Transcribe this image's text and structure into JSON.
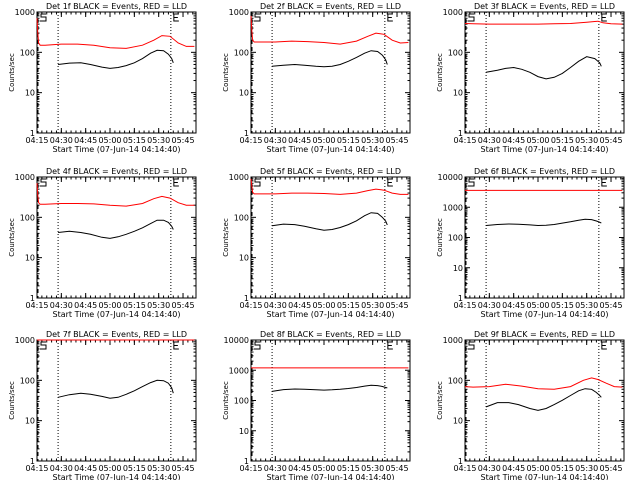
{
  "figure": {
    "xlabel": "Start Time (07-Jun-14 04:14:40)",
    "ylabel": "Counts/sec",
    "x_ticks": [
      "04:15",
      "04:30",
      "04:45",
      "05:00",
      "05:15",
      "05:30",
      "05:45"
    ],
    "x_tick_minutes": [
      15,
      30,
      45,
      60,
      75,
      90,
      105
    ],
    "x_range_minutes": [
      15,
      113
    ],
    "marker_S_minute": 15,
    "marker_E_minute": 97.5,
    "dotted_lines_minutes": [
      28,
      97.5
    ],
    "colors": {
      "events": "#000000",
      "lld": "#ff0000"
    }
  },
  "chart_data": [
    {
      "type": "line",
      "title": "Det 1f BLACK = Events, RED = LLD",
      "xlabel": "Start Time (07-Jun-14 04:14:40)",
      "ylabel": "Counts/sec",
      "yscale": "log",
      "ylim": [
        1,
        1000
      ],
      "y_ticks": [
        "1",
        "10",
        "100",
        "1000"
      ],
      "series": [
        {
          "x": [
            15,
            15.5,
            16,
            17,
            20,
            30,
            40,
            50,
            60,
            70,
            80,
            87,
            92,
            97,
            102,
            107,
            112
          ],
          "values": [
            700,
            300,
            170,
            150,
            150,
            160,
            160,
            150,
            130,
            125,
            150,
            200,
            260,
            250,
            170,
            140,
            140
          ]
        },
        {
          "x": [
            28,
            35,
            42,
            48,
            55,
            60,
            65,
            70,
            75,
            80,
            85,
            89,
            93,
            96,
            98,
            99
          ],
          "values": [
            50,
            54,
            55,
            50,
            43,
            40,
            42,
            47,
            55,
            70,
            95,
            112,
            110,
            90,
            70,
            55
          ]
        }
      ]
    },
    {
      "type": "line",
      "title": "Det 2f BLACK = Events, RED = LLD",
      "xlabel": "Start Time (07-Jun-14 04:14:40)",
      "ylabel": "Counts/sec",
      "yscale": "log",
      "ylim": [
        1,
        1000
      ],
      "y_ticks": [
        "1",
        "10",
        "100",
        "1000"
      ],
      "series": [
        {
          "x": [
            15,
            15.5,
            16,
            17,
            20,
            30,
            40,
            50,
            60,
            70,
            80,
            87,
            92,
            97,
            102,
            107,
            112
          ],
          "values": [
            800,
            350,
            200,
            180,
            180,
            180,
            190,
            185,
            175,
            160,
            190,
            250,
            300,
            280,
            200,
            170,
            175
          ]
        },
        {
          "x": [
            28,
            35,
            42,
            48,
            55,
            60,
            65,
            70,
            75,
            80,
            85,
            89,
            93,
            96,
            98,
            99
          ],
          "values": [
            45,
            48,
            50,
            48,
            45,
            44,
            45,
            50,
            60,
            75,
            95,
            110,
            105,
            85,
            65,
            50
          ]
        }
      ]
    },
    {
      "type": "line",
      "title": "Det 3f BLACK = Events, RED = LLD",
      "xlabel": "Start Time (07-Jun-14 04:14:40)",
      "ylabel": "Counts/sec",
      "yscale": "log",
      "ylim": [
        1,
        1000
      ],
      "y_ticks": [
        "1",
        "10",
        "100",
        "1000"
      ],
      "series": [
        {
          "x": [
            15,
            20,
            30,
            40,
            50,
            60,
            70,
            80,
            90,
            95,
            97,
            100,
            105,
            112
          ],
          "values": [
            520,
            510,
            500,
            500,
            500,
            500,
            510,
            520,
            560,
            580,
            590,
            540,
            510,
            500
          ]
        },
        {
          "x": [
            28,
            35,
            40,
            45,
            50,
            55,
            60,
            65,
            70,
            75,
            80,
            85,
            90,
            95,
            98,
            99
          ],
          "values": [
            32,
            36,
            40,
            42,
            38,
            32,
            25,
            22,
            24,
            30,
            42,
            60,
            78,
            70,
            55,
            45
          ]
        }
      ]
    },
    {
      "type": "line",
      "title": "Det 4f BLACK = Events, RED = LLD",
      "xlabel": "Start Time (07-Jun-14 04:14:40)",
      "ylabel": "Counts/sec",
      "yscale": "log",
      "ylim": [
        1,
        1000
      ],
      "y_ticks": [
        "1",
        "10",
        "100",
        "1000"
      ],
      "series": [
        {
          "x": [
            15,
            15.5,
            16,
            17,
            20,
            30,
            40,
            50,
            60,
            70,
            80,
            87,
            92,
            97,
            102,
            107,
            112
          ],
          "values": [
            700,
            350,
            230,
            210,
            210,
            220,
            220,
            215,
            200,
            190,
            220,
            290,
            330,
            300,
            230,
            200,
            200
          ]
        },
        {
          "x": [
            28,
            35,
            42,
            48,
            55,
            60,
            65,
            70,
            75,
            80,
            85,
            89,
            93,
            96,
            98,
            99
          ],
          "values": [
            42,
            45,
            42,
            38,
            32,
            30,
            33,
            38,
            45,
            55,
            70,
            85,
            85,
            75,
            60,
            50
          ]
        }
      ]
    },
    {
      "type": "line",
      "title": "Det 5f BLACK = Events, RED = LLD",
      "xlabel": "Start Time (07-Jun-14 04:14:40)",
      "ylabel": "Counts/sec",
      "yscale": "log",
      "ylim": [
        1,
        1000
      ],
      "y_ticks": [
        "1",
        "10",
        "100",
        "1000"
      ],
      "series": [
        {
          "x": [
            15,
            15.5,
            16,
            17,
            20,
            30,
            40,
            50,
            60,
            70,
            80,
            87,
            92,
            97,
            102,
            107,
            112
          ],
          "values": [
            900,
            600,
            420,
            380,
            380,
            380,
            400,
            400,
            390,
            370,
            400,
            460,
            500,
            470,
            400,
            370,
            370
          ]
        },
        {
          "x": [
            28,
            35,
            42,
            48,
            55,
            60,
            65,
            70,
            75,
            80,
            85,
            89,
            93,
            96,
            98,
            99
          ],
          "values": [
            62,
            68,
            66,
            60,
            52,
            48,
            50,
            56,
            66,
            82,
            110,
            130,
            125,
            100,
            80,
            65
          ]
        }
      ]
    },
    {
      "type": "line",
      "title": "Det 6f BLACK = Events, RED = LLD",
      "xlabel": "Start Time (07-Jun-14 04:14:40)",
      "ylabel": "Counts/sec",
      "yscale": "log",
      "ylim": [
        1,
        10000
      ],
      "y_ticks": [
        "1",
        "10",
        "100",
        "1000",
        "10000"
      ],
      "series": [
        {
          "x": [
            15,
            30,
            45,
            60,
            75,
            90,
            105,
            112
          ],
          "values": [
            3600,
            3600,
            3600,
            3600,
            3600,
            3600,
            3600,
            3600
          ]
        },
        {
          "x": [
            28,
            35,
            42,
            48,
            55,
            60,
            65,
            70,
            75,
            80,
            85,
            89,
            93,
            96,
            98,
            99
          ],
          "values": [
            250,
            270,
            280,
            275,
            260,
            250,
            255,
            270,
            300,
            330,
            370,
            400,
            390,
            350,
            320,
            300
          ]
        }
      ]
    },
    {
      "type": "line",
      "title": "Det 7f BLACK = Events, RED = LLD",
      "xlabel": "Start Time (07-Jun-14 04:14:40)",
      "ylabel": "Counts/sec",
      "yscale": "log",
      "ylim": [
        1,
        1000
      ],
      "y_ticks": [
        "1",
        "10",
        "100",
        "1000"
      ],
      "series": [
        {
          "x": [
            15,
            20,
            30,
            40,
            50,
            60,
            70,
            80,
            90,
            97,
            100,
            105,
            112
          ],
          "values": [
            1000,
            1000,
            1000,
            1000,
            1000,
            1000,
            1000,
            1000,
            1000,
            1000,
            1000,
            1000,
            1000
          ]
        },
        {
          "x": [
            28,
            35,
            42,
            48,
            55,
            60,
            65,
            70,
            75,
            80,
            85,
            89,
            93,
            96,
            98,
            99
          ],
          "values": [
            38,
            44,
            48,
            45,
            40,
            36,
            38,
            45,
            55,
            70,
            88,
            100,
            98,
            85,
            65,
            48
          ]
        }
      ]
    },
    {
      "type": "line",
      "title": "Det 8f BLACK = Events, RED = LLD",
      "xlabel": "Start Time (07-Jun-14 04:14:40)",
      "ylabel": "Counts/sec",
      "yscale": "log",
      "ylim": [
        1,
        10000
      ],
      "y_ticks": [
        "1",
        "10",
        "100",
        "1000",
        "10000"
      ],
      "series": [
        {
          "x": [
            15,
            30,
            45,
            60,
            75,
            90,
            105,
            112
          ],
          "values": [
            1200,
            1200,
            1200,
            1200,
            1200,
            1200,
            1200,
            1200
          ]
        },
        {
          "x": [
            28,
            35,
            42,
            48,
            55,
            60,
            65,
            70,
            75,
            80,
            85,
            89,
            93,
            96,
            98,
            99
          ],
          "values": [
            200,
            230,
            240,
            235,
            225,
            220,
            225,
            235,
            250,
            270,
            300,
            320,
            310,
            290,
            270,
            260
          ]
        }
      ]
    },
    {
      "type": "line",
      "title": "Det 9f BLACK = Events, RED = LLD",
      "xlabel": "Start Time (07-Jun-14 04:14:40)",
      "ylabel": "Counts/sec",
      "yscale": "log",
      "ylim": [
        1,
        1000
      ],
      "y_ticks": [
        "1",
        "10",
        "100",
        "1000"
      ],
      "series": [
        {
          "x": [
            15,
            20,
            30,
            40,
            50,
            60,
            70,
            80,
            88,
            93,
            97,
            102,
            107,
            112
          ],
          "values": [
            70,
            68,
            70,
            80,
            72,
            62,
            60,
            70,
            100,
            115,
            105,
            85,
            70,
            68
          ]
        },
        {
          "x": [
            28,
            35,
            42,
            48,
            55,
            60,
            65,
            70,
            75,
            80,
            85,
            89,
            93,
            96,
            98,
            99
          ],
          "values": [
            22,
            28,
            28,
            25,
            20,
            18,
            20,
            25,
            32,
            42,
            55,
            62,
            60,
            50,
            42,
            38
          ]
        }
      ]
    }
  ]
}
